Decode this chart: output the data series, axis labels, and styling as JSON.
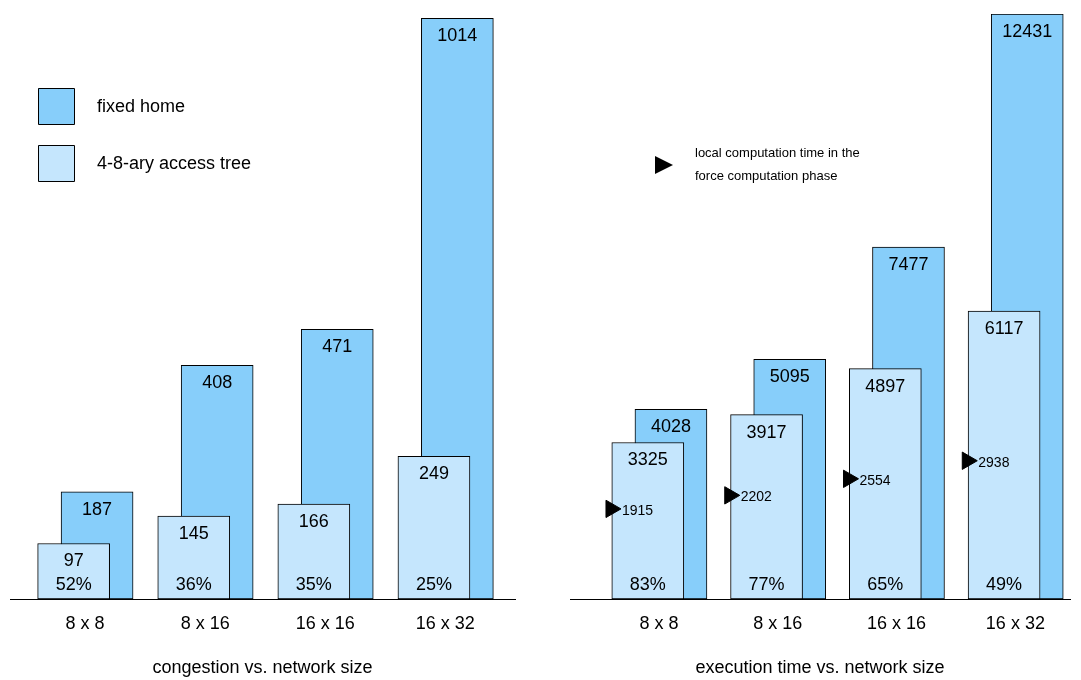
{
  "chart_data": [
    {
      "type": "bar",
      "xlabel": "congestion vs. network size",
      "categories": [
        "8 x 8",
        "8 x 16",
        "16 x 16",
        "16 x 32"
      ],
      "ylim": [
        0,
        1020
      ],
      "tick_labels": "x",
      "legend": "top left",
      "data_labels": true,
      "series": [
        {
          "name": "fixed home",
          "color": "#87cefa",
          "values": [
            187,
            408,
            471,
            1014
          ]
        },
        {
          "name": "4-8-ary access tree",
          "color": "#c5e6fd",
          "values": [
            97,
            145,
            166,
            249
          ]
        }
      ],
      "annotations": [
        {
          "text": "52%",
          "x": "8 x 8",
          "y": 0
        },
        {
          "text": "36%",
          "x": "8 x 16",
          "y": 0
        },
        {
          "text": "35%",
          "x": "16 x 16",
          "y": 0
        },
        {
          "text": "25%",
          "x": "16 x 32",
          "y": 0
        }
      ]
    },
    {
      "type": "bar",
      "xlabel": "execution time vs. network size",
      "categories": [
        "8 x 8",
        "8 x 16",
        "16 x 16",
        "16 x 32"
      ],
      "ylim": [
        0,
        12431
      ],
      "tick_labels": "x",
      "legend": "top",
      "data_labels": true,
      "marker": "triangle",
      "series": [
        {
          "color": "#87cefa",
          "values": [
            4028,
            5095,
            7477,
            12431
          ]
        },
        {
          "color": "#c5e6fd",
          "values": [
            3325,
            3917,
            4897,
            6117
          ]
        },
        {
          "type": "scatter",
          "name": "local computation time in the force computation phase",
          "color": "#000000",
          "x": [
            "8 x 8",
            "8 x 16",
            "16 x 16",
            "16 x 32"
          ],
          "values": [
            1915,
            2202,
            2554,
            2938
          ]
        }
      ],
      "annotations": [
        {
          "text": "83%",
          "x": "8 x 8",
          "y": 0
        },
        {
          "text": "77%",
          "x": "8 x 16",
          "y": 0
        },
        {
          "text": "65%",
          "x": "16 x 16",
          "y": 0
        },
        {
          "text": "49%",
          "x": "16 x 32",
          "y": 0
        }
      ]
    }
  ]
}
